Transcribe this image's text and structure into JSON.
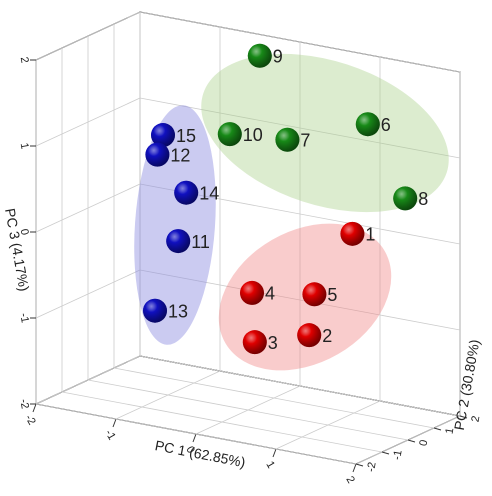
{
  "chart_data": {
    "type": "scatter3d",
    "xlabel": "PC 1 (62.85%)",
    "ylabel": "PC 2 (30.80%)",
    "zlabel": "PC 3 (4.17%)",
    "xlim": [
      -2,
      2
    ],
    "ylim": [
      -2,
      2
    ],
    "zlim": [
      -2,
      2
    ],
    "xticks": [
      -2,
      -1,
      0,
      1,
      2
    ],
    "yticks": [
      -2,
      -1,
      0,
      1,
      2
    ],
    "zticks": [
      -2,
      -1,
      0,
      1,
      2
    ],
    "grid": true,
    "series": [
      {
        "color": "#e00000",
        "labels": [
          "1",
          "5",
          "4",
          "2",
          "3"
        ],
        "x": [
          0.98,
          0.83,
          0.05,
          1.09,
          0.41
        ],
        "y": [
          1,
          0,
          0,
          -1,
          -1
        ],
        "z": [
          0.08,
          -0.51,
          -0.63,
          -0.8,
          -1.0
        ]
      },
      {
        "color": "#188a18",
        "labels": [
          "9",
          "6",
          "10",
          "7",
          "8"
        ],
        "x": [
          -0.34,
          1.01,
          -0.39,
          0.33,
          1.38
        ],
        "y": [
          1.5,
          1.5,
          0.5,
          0.5,
          1.8
        ],
        "z": [
          1.85,
          1.29,
          1.07,
          1.13,
          0.45
        ]
      },
      {
        "color": "#1010c0",
        "labels": [
          "15",
          "12",
          "14",
          "11",
          "13"
        ],
        "x": [
          -0.9,
          -0.97,
          -0.61,
          -0.71,
          -1.0
        ],
        "y": [
          -0.5,
          -0.5,
          -0.5,
          -0.5,
          -0.5
        ],
        "z": [
          1.11,
          0.87,
          0.49,
          -0.09,
          -0.95
        ]
      }
    ]
  }
}
